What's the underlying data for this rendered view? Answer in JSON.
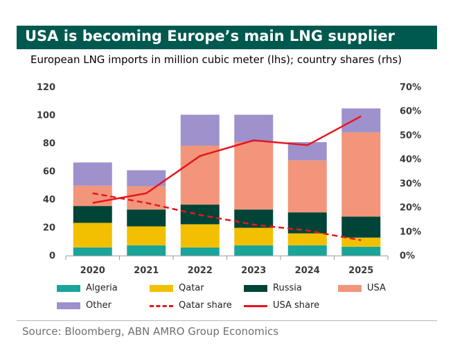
{
  "title": "USA is becoming Europe’s main LNG supplier",
  "subtitle": "European LNG imports in million cubic meter (lhs); country shares (rhs)",
  "source": "Source: Bloomberg, ABN AMRO Group Economics",
  "colors": {
    "title_bg": "#00594f",
    "Algeria": "#1aa59a",
    "Qatar": "#f2c000",
    "Russia": "#004438",
    "USA": "#f2957a",
    "Other": "#9e91cc",
    "share_line": "#e8151b"
  },
  "legend": [
    {
      "label": "Algeria",
      "kind": "bar",
      "color": "#1aa59a"
    },
    {
      "label": "Qatar",
      "kind": "bar",
      "color": "#f2c000"
    },
    {
      "label": "Russia",
      "kind": "bar",
      "color": "#004438"
    },
    {
      "label": "USA",
      "kind": "bar",
      "color": "#f2957a"
    },
    {
      "label": "Other",
      "kind": "bar",
      "color": "#9e91cc"
    },
    {
      "label": "Qatar share",
      "kind": "dashed-line",
      "color": "#e8151b"
    },
    {
      "label": "USA share",
      "kind": "line",
      "color": "#e8151b"
    }
  ],
  "chart_data": {
    "type": "bar",
    "stacked": true,
    "categories": [
      "2020",
      "2021",
      "2022",
      "2023",
      "2024",
      "2025"
    ],
    "series": [
      {
        "name": "Algeria",
        "axis": "left",
        "values": [
          6,
          7.5,
          6,
          7.5,
          7.5,
          6.5
        ]
      },
      {
        "name": "Qatar",
        "axis": "left",
        "values": [
          17.5,
          13.5,
          16.5,
          12.5,
          8.5,
          6.5
        ]
      },
      {
        "name": "Russia",
        "axis": "left",
        "values": [
          12,
          12,
          14,
          13,
          15,
          15
        ]
      },
      {
        "name": "USA",
        "axis": "left",
        "values": [
          14.5,
          16.5,
          42,
          48,
          37,
          60
        ]
      },
      {
        "name": "Other",
        "axis": "left",
        "values": [
          16.5,
          11.5,
          22,
          19.5,
          13,
          17
        ]
      },
      {
        "name": "Qatar share",
        "axis": "right",
        "type": "line",
        "style": "dashed",
        "values": [
          26,
          22,
          17,
          13,
          10.5,
          6.5
        ]
      },
      {
        "name": "USA share",
        "axis": "right",
        "type": "line",
        "style": "solid",
        "values": [
          22,
          26,
          41.5,
          48,
          46,
          58
        ]
      }
    ],
    "y_left": {
      "lim": [
        0,
        120
      ],
      "ticks": [
        0,
        20,
        40,
        60,
        80,
        100,
        120
      ],
      "tick_labels": [
        "0",
        "20",
        "40",
        "60",
        "80",
        "100",
        "120"
      ]
    },
    "y_right": {
      "lim": [
        0,
        70
      ],
      "ticks": [
        0,
        10,
        20,
        30,
        40,
        50,
        60,
        70
      ],
      "tick_labels": [
        "0%",
        "10%",
        "20%",
        "30%",
        "40%",
        "50%",
        "60%",
        "70%"
      ]
    },
    "grid": false,
    "legend_position": "bottom"
  }
}
